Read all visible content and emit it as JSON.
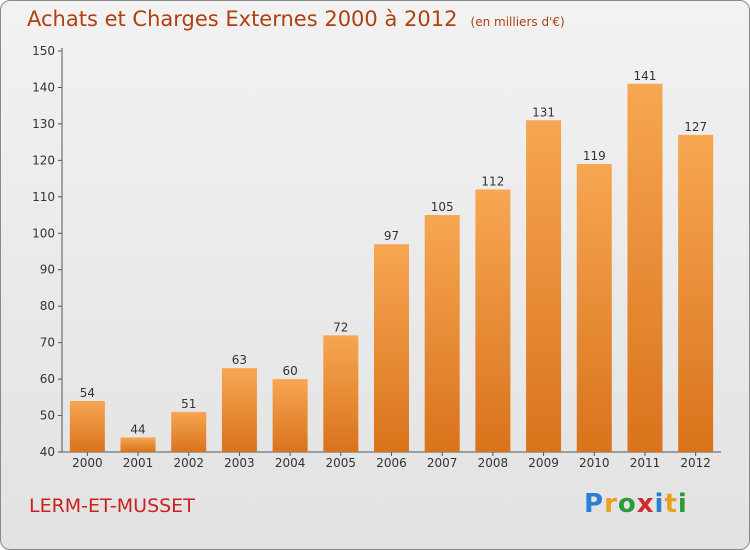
{
  "header": {
    "title": "Achats et Charges Externes 2000 à 2012",
    "unit": "(en milliers d'€)"
  },
  "footer": {
    "place": "LERM-ET-MUSSET",
    "brand_letters": [
      "P",
      "r",
      "o",
      "x",
      "i",
      "t",
      "i"
    ],
    "brand_colors": [
      "#2a7fd4",
      "#e8a020",
      "#2a9a3a",
      "#d02a2a",
      "#2a7fd4",
      "#e8a020",
      "#2a9a3a"
    ]
  },
  "chart_data": {
    "type": "bar",
    "title": "Achats et Charges Externes 2000 à 2012",
    "subtitle": "(en milliers d'€)",
    "categories": [
      "2000",
      "2001",
      "2002",
      "2003",
      "2004",
      "2005",
      "2006",
      "2007",
      "2008",
      "2009",
      "2010",
      "2011",
      "2012"
    ],
    "values": [
      54,
      44,
      51,
      63,
      60,
      72,
      97,
      105,
      112,
      131,
      119,
      141,
      127
    ],
    "ylim": [
      40,
      150
    ],
    "yticks": [
      40,
      50,
      60,
      70,
      80,
      90,
      100,
      110,
      120,
      130,
      140,
      150
    ],
    "grid": false,
    "bar_color_top": "#f7a652",
    "bar_color_bottom": "#d9731c"
  }
}
